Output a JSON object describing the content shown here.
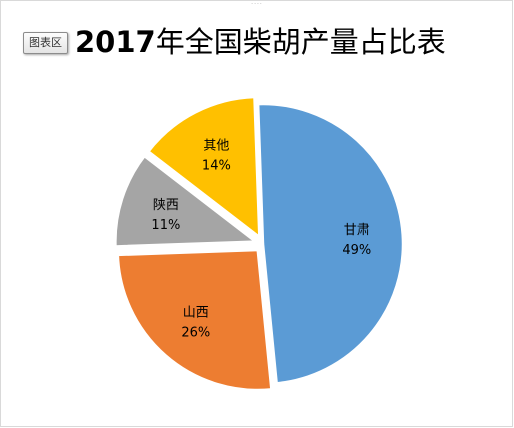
{
  "window": {
    "handle": "....",
    "chart_area_tag": "图表区"
  },
  "colors": {
    "gansu": "#5b9bd5",
    "shanxi": "#ed7d31",
    "shaanxi": "#a5a5a5",
    "other": "#ffc000"
  },
  "chart_data": {
    "type": "pie",
    "title": "2017年全国柴胡产量占比表",
    "legend": "none",
    "start_angle_deg": -2,
    "slices": [
      {
        "label": "甘肃",
        "value": 49,
        "percent_label": "49%",
        "color": "#5b9bd5",
        "explode": false
      },
      {
        "label": "山西",
        "value": 26,
        "percent_label": "26%",
        "color": "#ed7d31",
        "explode": true
      },
      {
        "label": "陕西",
        "value": 11,
        "percent_label": "11%",
        "color": "#a5a5a5",
        "explode": true
      },
      {
        "label": "其他",
        "value": 14,
        "percent_label": "14%",
        "color": "#ffc000",
        "explode": true
      }
    ]
  }
}
